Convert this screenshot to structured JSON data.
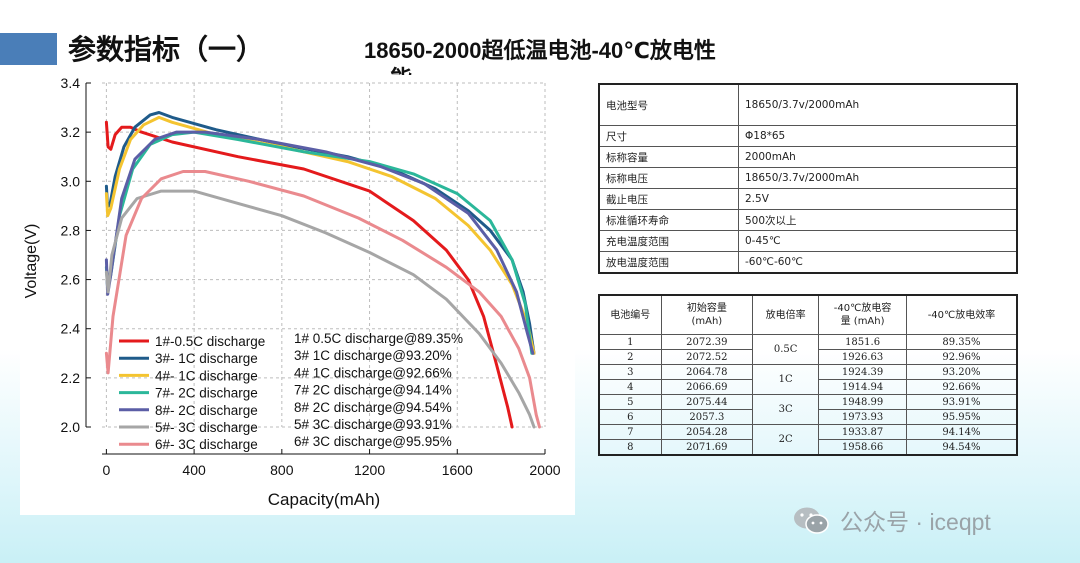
{
  "header": {
    "title": "参数指标（一）",
    "subtitle_line1": "18650-2000超低温电池-40℃放电性",
    "subtitle_line2": "能"
  },
  "chart_data": {
    "type": "line",
    "xlabel": "Capacity(mAh)",
    "ylabel": "Voltage(V)",
    "xlim": [
      -20,
      2000
    ],
    "ylim": [
      2.0,
      3.4
    ],
    "xticks": [
      0,
      400,
      800,
      1200,
      1600,
      2000
    ],
    "yticks": [
      2.0,
      2.2,
      2.4,
      2.6,
      2.8,
      3.0,
      3.2,
      3.4
    ],
    "grid": "dashed",
    "legend_position": "bottom-left",
    "series": [
      {
        "name": "1#-0.5C discharge",
        "color": "#e41a1c",
        "points": [
          [
            0,
            3.24
          ],
          [
            8,
            3.14
          ],
          [
            20,
            3.13
          ],
          [
            40,
            3.19
          ],
          [
            70,
            3.22
          ],
          [
            110,
            3.22
          ],
          [
            160,
            3.2
          ],
          [
            300,
            3.16
          ],
          [
            600,
            3.1
          ],
          [
            900,
            3.05
          ],
          [
            1200,
            2.96
          ],
          [
            1400,
            2.84
          ],
          [
            1550,
            2.72
          ],
          [
            1650,
            2.6
          ],
          [
            1720,
            2.45
          ],
          [
            1780,
            2.25
          ],
          [
            1830,
            2.08
          ],
          [
            1850,
            2.0
          ]
        ]
      },
      {
        "name": "3#- 1C discharge",
        "color": "#1f5b8a",
        "points": [
          [
            0,
            2.98
          ],
          [
            5,
            2.9
          ],
          [
            15,
            2.9
          ],
          [
            40,
            3.02
          ],
          [
            80,
            3.14
          ],
          [
            130,
            3.22
          ],
          [
            200,
            3.27
          ],
          [
            240,
            3.28
          ],
          [
            300,
            3.26
          ],
          [
            500,
            3.21
          ],
          [
            800,
            3.15
          ],
          [
            1100,
            3.1
          ],
          [
            1300,
            3.05
          ],
          [
            1500,
            2.97
          ],
          [
            1650,
            2.88
          ],
          [
            1750,
            2.8
          ],
          [
            1850,
            2.68
          ],
          [
            1900,
            2.55
          ],
          [
            1930,
            2.42
          ],
          [
            1950,
            2.3
          ]
        ]
      },
      {
        "name": "4#- 1C discharge",
        "color": "#f4c430",
        "points": [
          [
            0,
            2.95
          ],
          [
            6,
            2.86
          ],
          [
            20,
            2.89
          ],
          [
            60,
            3.05
          ],
          [
            110,
            3.17
          ],
          [
            170,
            3.23
          ],
          [
            240,
            3.26
          ],
          [
            300,
            3.24
          ],
          [
            500,
            3.19
          ],
          [
            800,
            3.14
          ],
          [
            1100,
            3.08
          ],
          [
            1300,
            3.02
          ],
          [
            1500,
            2.93
          ],
          [
            1650,
            2.82
          ],
          [
            1750,
            2.72
          ],
          [
            1850,
            2.58
          ],
          [
            1920,
            2.42
          ],
          [
            1950,
            2.3
          ]
        ]
      },
      {
        "name": "7#- 2C discharge",
        "color": "#2bb79a",
        "points": [
          [
            0,
            2.65
          ],
          [
            6,
            2.56
          ],
          [
            20,
            2.62
          ],
          [
            60,
            2.86
          ],
          [
            120,
            3.05
          ],
          [
            200,
            3.15
          ],
          [
            300,
            3.19
          ],
          [
            400,
            3.2
          ],
          [
            600,
            3.17
          ],
          [
            900,
            3.12
          ],
          [
            1200,
            3.08
          ],
          [
            1400,
            3.03
          ],
          [
            1600,
            2.95
          ],
          [
            1750,
            2.84
          ],
          [
            1850,
            2.68
          ],
          [
            1910,
            2.5
          ],
          [
            1940,
            2.3
          ]
        ]
      },
      {
        "name": "8#- 2C discharge",
        "color": "#5b5ea6",
        "points": [
          [
            0,
            2.68
          ],
          [
            6,
            2.54
          ],
          [
            20,
            2.62
          ],
          [
            70,
            2.93
          ],
          [
            130,
            3.09
          ],
          [
            220,
            3.17
          ],
          [
            320,
            3.2
          ],
          [
            450,
            3.2
          ],
          [
            700,
            3.17
          ],
          [
            1000,
            3.12
          ],
          [
            1250,
            3.06
          ],
          [
            1450,
            2.99
          ],
          [
            1650,
            2.87
          ],
          [
            1780,
            2.72
          ],
          [
            1870,
            2.55
          ],
          [
            1920,
            2.38
          ],
          [
            1945,
            2.3
          ]
        ]
      },
      {
        "name": "5#- 3C discharge",
        "color": "#a6a6a6",
        "points": [
          [
            0,
            2.63
          ],
          [
            8,
            2.55
          ],
          [
            25,
            2.7
          ],
          [
            70,
            2.85
          ],
          [
            140,
            2.93
          ],
          [
            250,
            2.96
          ],
          [
            400,
            2.96
          ],
          [
            600,
            2.91
          ],
          [
            800,
            2.86
          ],
          [
            1000,
            2.79
          ],
          [
            1200,
            2.71
          ],
          [
            1400,
            2.62
          ],
          [
            1550,
            2.52
          ],
          [
            1700,
            2.38
          ],
          [
            1800,
            2.26
          ],
          [
            1880,
            2.14
          ],
          [
            1930,
            2.05
          ],
          [
            1950,
            2.0
          ]
        ]
      },
      {
        "name": "6#- 3C discharge",
        "color": "#ea8a8e",
        "points": [
          [
            0,
            2.3
          ],
          [
            8,
            2.22
          ],
          [
            30,
            2.45
          ],
          [
            90,
            2.78
          ],
          [
            160,
            2.93
          ],
          [
            250,
            3.01
          ],
          [
            350,
            3.04
          ],
          [
            450,
            3.04
          ],
          [
            650,
            3.0
          ],
          [
            900,
            2.94
          ],
          [
            1150,
            2.85
          ],
          [
            1350,
            2.76
          ],
          [
            1550,
            2.65
          ],
          [
            1700,
            2.55
          ],
          [
            1800,
            2.45
          ],
          [
            1880,
            2.32
          ],
          [
            1930,
            2.2
          ],
          [
            1960,
            2.05
          ],
          [
            1975,
            2.0
          ]
        ]
      }
    ],
    "annotations": [
      "1# 0.5C discharge@89.35%",
      "3#    1C discharge@93.20%",
      "4#    1C discharge@92.66%",
      "7#   2C discharge@94.14%",
      "8#   2C discharge@94.54%",
      "5#   3C discharge@93.91%",
      "6#   3C discharge@95.95%"
    ]
  },
  "spec_table": [
    {
      "key": "电池型号",
      "value": "18650/3.7v/2000mAh"
    },
    {
      "key": "尺寸",
      "value": "Φ18*65"
    },
    {
      "key": "标称容量",
      "value": "2000mAh"
    },
    {
      "key": "标称电压",
      "value": "18650/3.7v/2000mAh"
    },
    {
      "key": "截止电压",
      "value": "2.5V"
    },
    {
      "key": "标准循环寿命",
      "value": "500次以上"
    },
    {
      "key": "充电温度范围",
      "value": "0-45℃"
    },
    {
      "key": "放电温度范围",
      "value": "-60℃-60℃"
    }
  ],
  "result_table": {
    "headers": [
      "电池编号",
      "初始容量\n(mAh)",
      "放电倍率",
      "-40℃放电容\n量 (mAh)",
      "-40℃放电效率"
    ],
    "rows": [
      {
        "id": "1",
        "initial": "2072.39",
        "cap": "1851.6",
        "eff": "89.35%"
      },
      {
        "id": "2",
        "initial": "2072.52",
        "cap": "1926.63",
        "eff": "92.96%"
      },
      {
        "id": "3",
        "initial": "2064.78",
        "cap": "1924.39",
        "eff": "93.20%"
      },
      {
        "id": "4",
        "initial": "2066.69",
        "cap": "1914.94",
        "eff": "92.66%"
      },
      {
        "id": "5",
        "initial": "2075.44",
        "cap": "1948.99",
        "eff": "93.91%"
      },
      {
        "id": "6",
        "initial": "2057.3",
        "cap": "1973.93",
        "eff": "95.95%"
      },
      {
        "id": "7",
        "initial": "2054.28",
        "cap": "1933.87",
        "eff": "94.14%"
      },
      {
        "id": "8",
        "initial": "2071.69",
        "cap": "1958.66",
        "eff": "94.54%"
      }
    ],
    "rates": [
      "0.5C",
      "1C",
      "3C",
      "2C"
    ]
  },
  "watermark": {
    "text": "公众号 · iceqpt",
    "icon": "wechat-icon"
  }
}
